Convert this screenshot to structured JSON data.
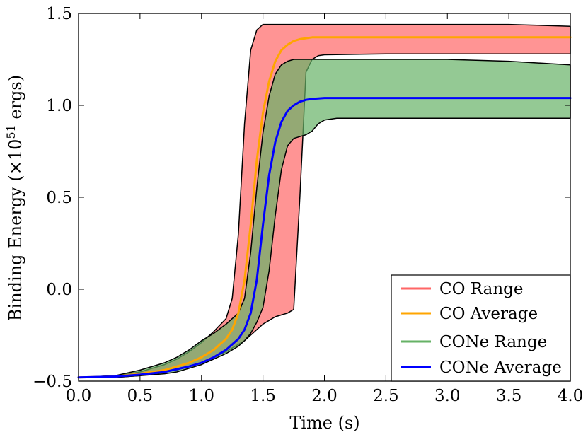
{
  "chart_data": {
    "type": "area",
    "title": "",
    "xlabel": "Time (s)",
    "ylabel_text": "Binding Energy (×10",
    "ylabel_exponent": "51",
    "ylabel_unit": " ergs)",
    "xlim": [
      0.0,
      4.0
    ],
    "ylim": [
      -0.5,
      1.5
    ],
    "xticks": [
      0.0,
      0.5,
      1.0,
      1.5,
      2.0,
      2.5,
      3.0,
      3.5,
      4.0
    ],
    "xtick_labels": [
      "0.0",
      "0.5",
      "1.0",
      "1.5",
      "2.0",
      "2.5",
      "3.0",
      "3.5",
      "4.0"
    ],
    "yticks": [
      -0.5,
      0.0,
      0.5,
      1.0,
      1.5
    ],
    "ytick_labels": [
      "−0.5",
      "0.0",
      "0.5",
      "1.0",
      "1.5"
    ],
    "legend_position": "lower-right",
    "series": [
      {
        "name": "CO Range",
        "kind": "band",
        "color": "#ff6666",
        "x": [
          0.0,
          0.3,
          0.5,
          0.7,
          0.8,
          0.9,
          1.0,
          1.1,
          1.2,
          1.25,
          1.3,
          1.35,
          1.4,
          1.45,
          1.5,
          1.55,
          1.6,
          1.65,
          1.7,
          1.75,
          1.8,
          1.85,
          1.9,
          1.95,
          2.0,
          2.5,
          3.0,
          3.5,
          4.0
        ],
        "upper": [
          -0.48,
          -0.47,
          -0.45,
          -0.41,
          -0.38,
          -0.34,
          -0.29,
          -0.23,
          -0.16,
          -0.05,
          0.3,
          0.9,
          1.3,
          1.41,
          1.44,
          1.44,
          1.44,
          1.44,
          1.44,
          1.44,
          1.44,
          1.44,
          1.44,
          1.44,
          1.44,
          1.44,
          1.44,
          1.44,
          1.43
        ],
        "lower": [
          -0.48,
          -0.48,
          -0.47,
          -0.45,
          -0.44,
          -0.42,
          -0.4,
          -0.37,
          -0.34,
          -0.32,
          -0.3,
          -0.28,
          -0.25,
          -0.22,
          -0.19,
          -0.17,
          -0.15,
          -0.14,
          -0.13,
          -0.11,
          0.5,
          1.18,
          1.25,
          1.27,
          1.275,
          1.28,
          1.28,
          1.28,
          1.28
        ]
      },
      {
        "name": "CO Average",
        "kind": "line",
        "color": "#ffa500",
        "x": [
          0.0,
          0.3,
          0.5,
          0.7,
          0.9,
          1.0,
          1.1,
          1.2,
          1.25,
          1.3,
          1.35,
          1.4,
          1.45,
          1.5,
          1.55,
          1.6,
          1.65,
          1.7,
          1.75,
          1.8,
          1.9,
          2.0,
          2.5,
          3.0,
          3.5,
          4.0
        ],
        "values": [
          -0.48,
          -0.475,
          -0.46,
          -0.44,
          -0.4,
          -0.37,
          -0.33,
          -0.27,
          -0.22,
          -0.13,
          0.05,
          0.35,
          0.7,
          0.96,
          1.13,
          1.24,
          1.3,
          1.33,
          1.35,
          1.36,
          1.37,
          1.37,
          1.37,
          1.37,
          1.37,
          1.37
        ]
      },
      {
        "name": "CONe Range",
        "kind": "band",
        "color": "#66b266",
        "x": [
          0.0,
          0.3,
          0.5,
          0.7,
          0.8,
          0.9,
          1.0,
          1.1,
          1.2,
          1.25,
          1.3,
          1.35,
          1.4,
          1.45,
          1.5,
          1.55,
          1.6,
          1.65,
          1.7,
          1.75,
          1.8,
          1.85,
          1.9,
          1.95,
          2.0,
          2.1,
          2.5,
          3.0,
          3.5,
          4.0
        ],
        "upper": [
          -0.48,
          -0.47,
          -0.44,
          -0.4,
          -0.37,
          -0.33,
          -0.28,
          -0.24,
          -0.19,
          -0.16,
          -0.13,
          -0.05,
          0.2,
          0.55,
          0.85,
          1.05,
          1.17,
          1.22,
          1.24,
          1.25,
          1.25,
          1.25,
          1.25,
          1.25,
          1.25,
          1.25,
          1.25,
          1.25,
          1.24,
          1.22
        ],
        "lower": [
          -0.48,
          -0.48,
          -0.47,
          -0.46,
          -0.45,
          -0.43,
          -0.41,
          -0.38,
          -0.35,
          -0.33,
          -0.31,
          -0.28,
          -0.24,
          -0.18,
          -0.1,
          0.1,
          0.4,
          0.65,
          0.78,
          0.82,
          0.83,
          0.84,
          0.86,
          0.9,
          0.92,
          0.93,
          0.93,
          0.93,
          0.93,
          0.93
        ]
      },
      {
        "name": "CONe Average",
        "kind": "line",
        "color": "#0000ff",
        "x": [
          0.0,
          0.3,
          0.5,
          0.7,
          0.9,
          1.0,
          1.1,
          1.2,
          1.3,
          1.35,
          1.4,
          1.45,
          1.5,
          1.55,
          1.6,
          1.65,
          1.7,
          1.75,
          1.8,
          1.85,
          1.9,
          2.0,
          2.5,
          3.0,
          3.5,
          4.0
        ],
        "values": [
          -0.48,
          -0.475,
          -0.465,
          -0.45,
          -0.42,
          -0.4,
          -0.37,
          -0.33,
          -0.27,
          -0.22,
          -0.13,
          0.05,
          0.35,
          0.62,
          0.8,
          0.91,
          0.97,
          1.0,
          1.02,
          1.03,
          1.035,
          1.04,
          1.04,
          1.04,
          1.04,
          1.04
        ]
      }
    ]
  }
}
